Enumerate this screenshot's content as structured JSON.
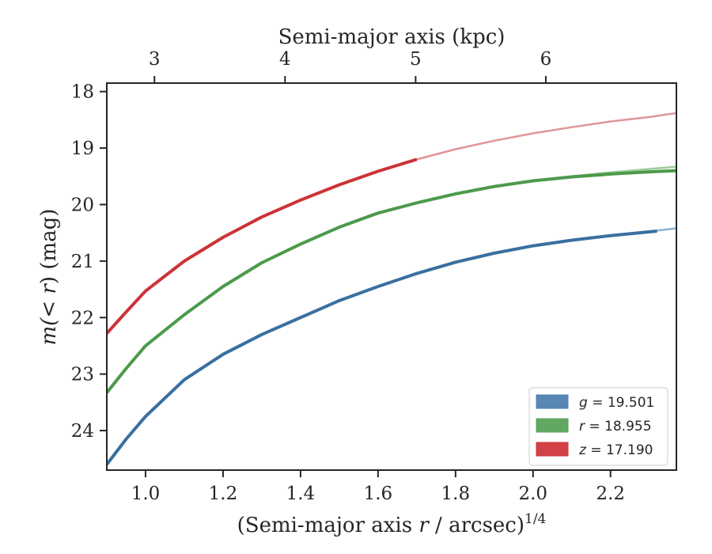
{
  "chart_data": {
    "type": "line",
    "xlabel": "(Semi-major axis r / arcsec)",
    "xlabel_parts": {
      "prefix": "(Semi-major axis ",
      "var": "r",
      "suffix": " / arcsec)",
      "power": "1/4"
    },
    "ylabel": "m(< r) (mag)",
    "ylabel_parts": {
      "prefix": "m(",
      "var": "< r",
      "suffix": ") (mag)"
    },
    "top_xlabel": "Semi-major axis (kpc)",
    "xlim": [
      0.9,
      2.37
    ],
    "ylim": [
      24.7,
      17.85
    ],
    "y_inverted": true,
    "x_ticks": [
      {
        "v": 1.0,
        "label": "1.0"
      },
      {
        "v": 1.2,
        "label": "1.2"
      },
      {
        "v": 1.4,
        "label": "1.4"
      },
      {
        "v": 1.6,
        "label": "1.6"
      },
      {
        "v": 1.8,
        "label": "1.8"
      },
      {
        "v": 2.0,
        "label": "2.0"
      },
      {
        "v": 2.2,
        "label": "2.2"
      }
    ],
    "y_ticks": [
      {
        "v": 18,
        "label": "18"
      },
      {
        "v": 19,
        "label": "19"
      },
      {
        "v": 20,
        "label": "20"
      },
      {
        "v": 21,
        "label": "21"
      },
      {
        "v": 22,
        "label": "22"
      },
      {
        "v": 23,
        "label": "23"
      },
      {
        "v": 24,
        "label": "24"
      }
    ],
    "top_ticks": [
      {
        "v": 3,
        "x": 1.023,
        "label": "3"
      },
      {
        "v": 4,
        "x": 1.36,
        "label": "4"
      },
      {
        "v": 5,
        "x": 1.697,
        "label": "5"
      },
      {
        "v": 6,
        "x": 2.033,
        "label": "6"
      }
    ],
    "grid": false,
    "legend_position": "bottom-right",
    "legend": [
      {
        "var": "g",
        "text": " = 19.501",
        "color": "#4f81b0"
      },
      {
        "var": "r",
        "text": " = 18.955",
        "color": "#5aa25a"
      },
      {
        "var": "z",
        "text": " = 17.190",
        "color": "#d0373d"
      }
    ],
    "series": [
      {
        "name": "g",
        "color": "#3a6fa0",
        "model_color": "#8eb0cf",
        "x": [
          0.9,
          0.95,
          1.0,
          1.1,
          1.2,
          1.3,
          1.4,
          1.5,
          1.6,
          1.7,
          1.8,
          1.9,
          2.0,
          2.1,
          2.2,
          2.32
        ],
        "y": [
          24.6,
          24.15,
          23.75,
          23.1,
          22.65,
          22.3,
          22.0,
          21.7,
          21.45,
          21.22,
          21.02,
          20.86,
          20.73,
          20.63,
          20.55,
          20.47
        ],
        "model_x": [
          2.2,
          2.26,
          2.32,
          2.37
        ],
        "model_y": [
          20.55,
          20.5,
          20.46,
          20.42
        ]
      },
      {
        "name": "r",
        "color": "#4c9a4c",
        "model_color": "#9ccd9c",
        "x": [
          0.9,
          0.95,
          1.0,
          1.1,
          1.2,
          1.3,
          1.4,
          1.5,
          1.6,
          1.7,
          1.8,
          1.9,
          2.0,
          2.1,
          2.2,
          2.3,
          2.37
        ],
        "y": [
          23.33,
          22.9,
          22.5,
          21.95,
          21.45,
          21.03,
          20.7,
          20.4,
          20.15,
          19.97,
          19.81,
          19.68,
          19.58,
          19.51,
          19.46,
          19.42,
          19.4
        ],
        "model_x": [
          2.1,
          2.2,
          2.3,
          2.37
        ],
        "model_y": [
          19.5,
          19.43,
          19.37,
          19.33
        ]
      },
      {
        "name": "z",
        "color": "#cc3338",
        "model_color": "#e09597",
        "x": [
          0.9,
          0.95,
          1.0,
          1.1,
          1.2,
          1.3,
          1.4,
          1.5,
          1.6,
          1.7
        ],
        "y": [
          22.28,
          21.9,
          21.53,
          21.0,
          20.58,
          20.22,
          19.92,
          19.65,
          19.41,
          19.2
        ],
        "model_x": [
          1.7,
          1.8,
          1.9,
          2.0,
          2.1,
          2.2,
          2.3,
          2.37
        ],
        "model_y": [
          19.2,
          19.02,
          18.87,
          18.74,
          18.63,
          18.53,
          18.45,
          18.38
        ]
      }
    ]
  }
}
